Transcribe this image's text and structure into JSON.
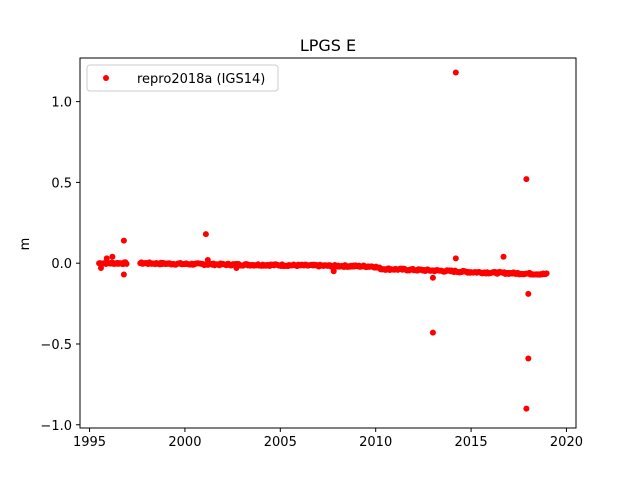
{
  "chart_data": {
    "type": "scatter",
    "title": "LPGS E",
    "xlabel": "",
    "ylabel": "m",
    "xlim": [
      1994.5,
      2020.5
    ],
    "ylim": [
      -1.02,
      1.27
    ],
    "xticks": [
      1995,
      2000,
      2005,
      2010,
      2015,
      2020
    ],
    "yticks": [
      -1.0,
      -0.5,
      0.0,
      0.5,
      1.0
    ],
    "ytick_labels": [
      "−1.0",
      "−0.5",
      "0.0",
      "0.5",
      "1.0"
    ],
    "grid": false,
    "legend_position": "top-left",
    "series": [
      {
        "name": "repro2018a (IGS14)",
        "color": "#ff0000",
        "marker": "circle",
        "trend": [
          [
            1995.5,
            0.0
          ],
          [
            1996.8,
            0.0
          ],
          [
            1997.7,
            0.0
          ],
          [
            2000.0,
            -0.005
          ],
          [
            2005.0,
            -0.012
          ],
          [
            2009.9,
            -0.02
          ],
          [
            2010.3,
            -0.035
          ],
          [
            2013.0,
            -0.045
          ],
          [
            2015.0,
            -0.055
          ],
          [
            2019.0,
            -0.068
          ]
        ],
        "gaps": [
          [
            1996.95,
            1997.6
          ]
        ],
        "outliers": [
          [
            1995.6,
            -0.03
          ],
          [
            1995.9,
            0.03
          ],
          [
            1996.2,
            0.04
          ],
          [
            1996.8,
            0.14
          ],
          [
            1996.8,
            -0.07
          ],
          [
            2001.1,
            0.18
          ],
          [
            2001.2,
            0.02
          ],
          [
            2002.7,
            -0.03
          ],
          [
            2007.8,
            -0.05
          ],
          [
            2013.0,
            -0.09
          ],
          [
            2013.0,
            -0.43
          ],
          [
            2014.2,
            1.18
          ],
          [
            2014.2,
            0.03
          ],
          [
            2016.7,
            0.04
          ],
          [
            2017.9,
            0.52
          ],
          [
            2018.0,
            -0.19
          ],
          [
            2018.0,
            -0.59
          ],
          [
            2017.9,
            -0.9
          ]
        ]
      }
    ]
  }
}
